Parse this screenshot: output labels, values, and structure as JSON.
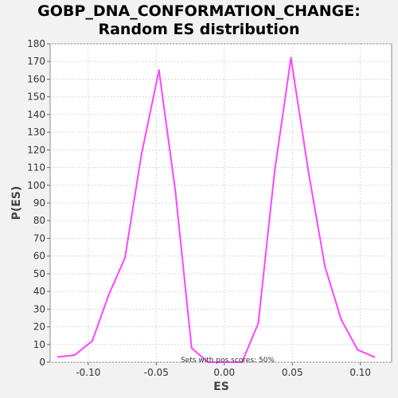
{
  "chart_data": {
    "type": "line",
    "title_line1": "GOBP_DNA_CONFORMATION_CHANGE:",
    "title_line2": "Random ES distribution",
    "xlabel": "ES",
    "ylabel": "P(ES)",
    "xlim": [
      -0.128,
      0.123
    ],
    "ylim": [
      0,
      180
    ],
    "x_ticks": [
      -0.1,
      -0.05,
      0.0,
      0.05,
      0.1
    ],
    "x_tick_labels": [
      "-0.10",
      "-0.05",
      "0.00",
      "0.05",
      "0.10"
    ],
    "y_ticks": [
      0,
      10,
      20,
      30,
      40,
      50,
      60,
      70,
      80,
      90,
      100,
      110,
      120,
      130,
      140,
      150,
      160,
      170,
      180
    ],
    "grid": true,
    "annotation": "Sets with pos scores: 50%",
    "line_color": "#ff44ff",
    "series": [
      {
        "x": [
          -0.122,
          -0.11,
          -0.097,
          -0.085,
          -0.073,
          -0.061,
          -0.048,
          -0.036,
          -0.024,
          -0.012,
          0.0,
          0.013,
          0.025,
          0.037,
          0.049,
          0.062,
          0.074,
          0.086,
          0.098,
          0.11
        ],
        "values": [
          3,
          4,
          12,
          38,
          59,
          117,
          165,
          97,
          8,
          0,
          0,
          0,
          22,
          108,
          172,
          107,
          54,
          24,
          7,
          3
        ]
      }
    ]
  }
}
